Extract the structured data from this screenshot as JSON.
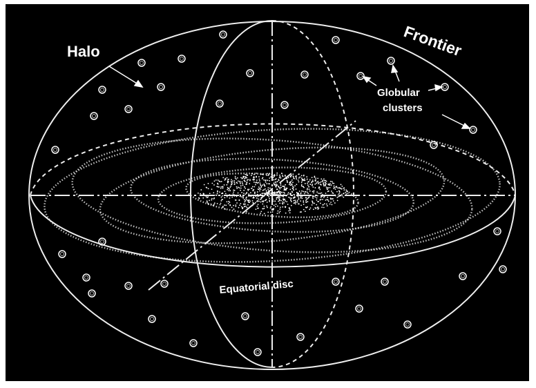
{
  "labels": {
    "halo": "Halo",
    "frontier": "Frontier",
    "globular_clusters": [
      "Globular",
      "clusters"
    ],
    "equatorial_disc": "Equatorial disc"
  }
}
